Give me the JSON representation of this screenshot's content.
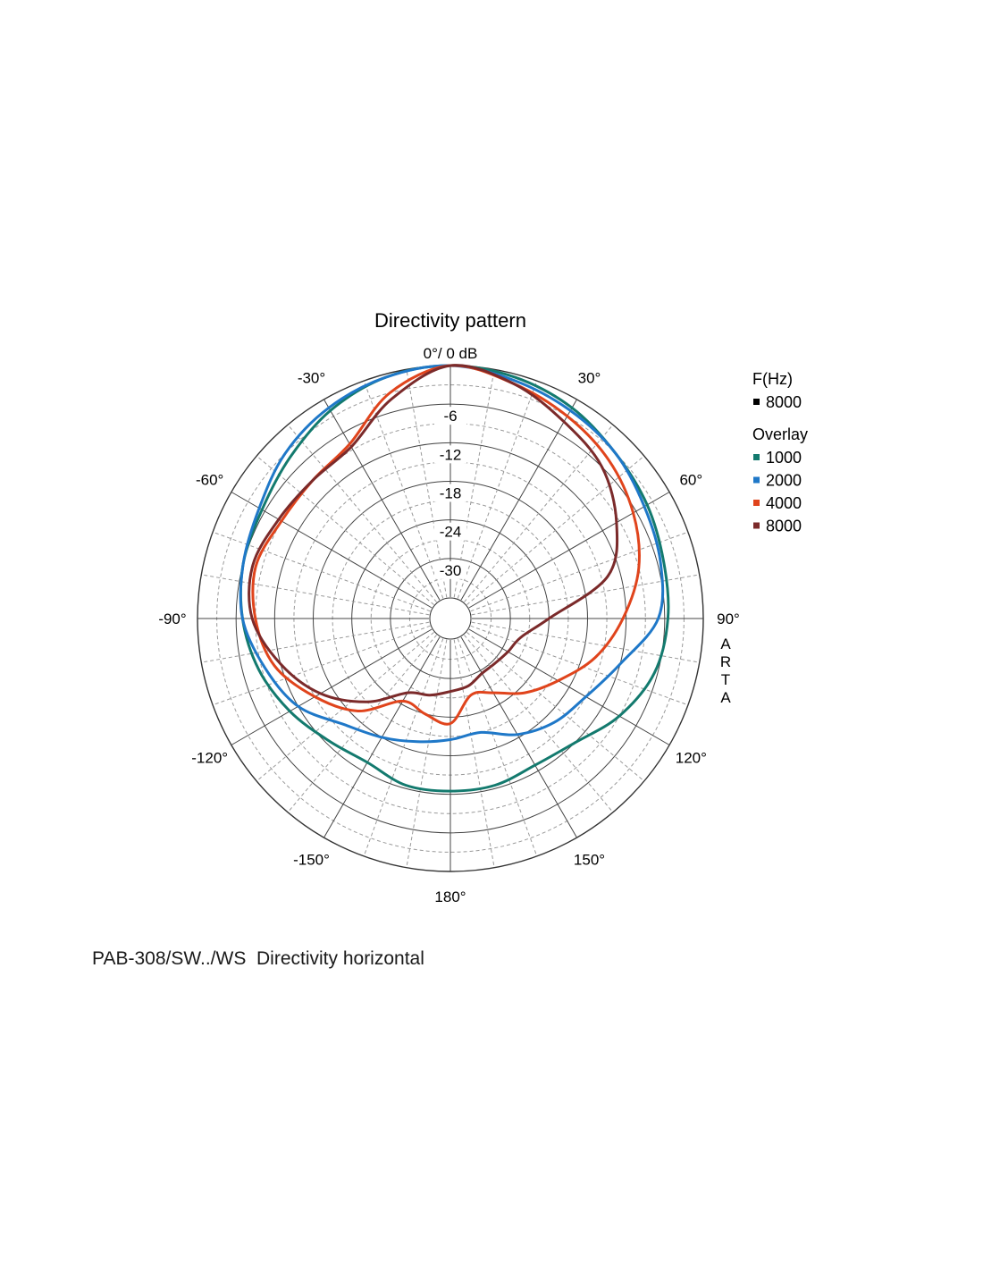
{
  "caption": "PAB-308/SW../WS  Directivity horizontal",
  "watermark": [
    "A",
    "R",
    "T",
    "A"
  ],
  "legend": {
    "heading": "F(Hz)",
    "current": {
      "label": "8000",
      "color": "#000000"
    },
    "overlay_heading": "Overlay",
    "items": [
      {
        "label": "1000",
        "color": "#137a6e"
      },
      {
        "label": "2000",
        "color": "#1f78c8"
      },
      {
        "label": "4000",
        "color": "#e0441c"
      },
      {
        "label": "8000",
        "color": "#7b2a2a"
      }
    ]
  },
  "chart_data": {
    "type": "polar",
    "title": "Directivity pattern",
    "top_label": "0°/ 0 dB",
    "radial_range": [
      -36,
      0
    ],
    "radial_ticks": [
      -6,
      -12,
      -18,
      -24,
      -30
    ],
    "radial_tick_labels": [
      "-6",
      "-12",
      "-18",
      "-24",
      "-30"
    ],
    "angle_ticks": [
      30,
      60,
      90,
      120,
      150,
      180,
      -150,
      -120,
      -90,
      -60,
      -30
    ],
    "angle_tick_labels": [
      "30°",
      "60°",
      "90°",
      "120°",
      "150°",
      "180°",
      "-150°",
      "-120°",
      "-90°",
      "-60°",
      "-30°"
    ],
    "grid": true,
    "angles_deg": [
      0,
      15,
      30,
      45,
      60,
      75,
      90,
      105,
      120,
      135,
      150,
      165,
      180,
      195,
      210,
      225,
      240,
      255,
      270,
      285,
      300,
      315,
      330,
      345
    ],
    "series": [
      {
        "name": "1000",
        "color": "#137a6e",
        "values": [
          0,
          -0.5,
          -1.5,
          -3,
          -4,
          -5,
          -5.5,
          -6.5,
          -9,
          -12,
          -13,
          -12.5,
          -12.5,
          -12.5,
          -13.5,
          -12.5,
          -10.5,
          -8.5,
          -7,
          -6,
          -5.5,
          -4,
          -2,
          -0.5
        ]
      },
      {
        "name": "2000",
        "color": "#1f78c8",
        "values": [
          0,
          -1,
          -2,
          -3,
          -4.5,
          -5.5,
          -7,
          -12,
          -15,
          -16.5,
          -18.5,
          -21,
          -20.5,
          -19.5,
          -18,
          -16,
          -12,
          -9.5,
          -7,
          -6,
          -5,
          -3,
          -1.5,
          -0.5
        ]
      },
      {
        "name": "4000",
        "color": "#e0441c",
        "values": [
          0,
          -1.5,
          -3,
          -4.5,
          -6.5,
          -9,
          -12.5,
          -16,
          -20,
          -23,
          -26,
          -27,
          -23,
          -24,
          -24.5,
          -19,
          -15,
          -11,
          -9,
          -8,
          -9,
          -9,
          -8,
          -3
        ]
      },
      {
        "name": "8000",
        "color": "#7b2a2a",
        "values": [
          0,
          -1.5,
          -4,
          -6,
          -9.5,
          -14,
          -24,
          -28,
          -29,
          -29.5,
          -29.5,
          -28.5,
          -28,
          -27,
          -26,
          -21,
          -16,
          -12,
          -8.5,
          -7.5,
          -8.5,
          -9,
          -8.5,
          -4
        ]
      }
    ]
  }
}
